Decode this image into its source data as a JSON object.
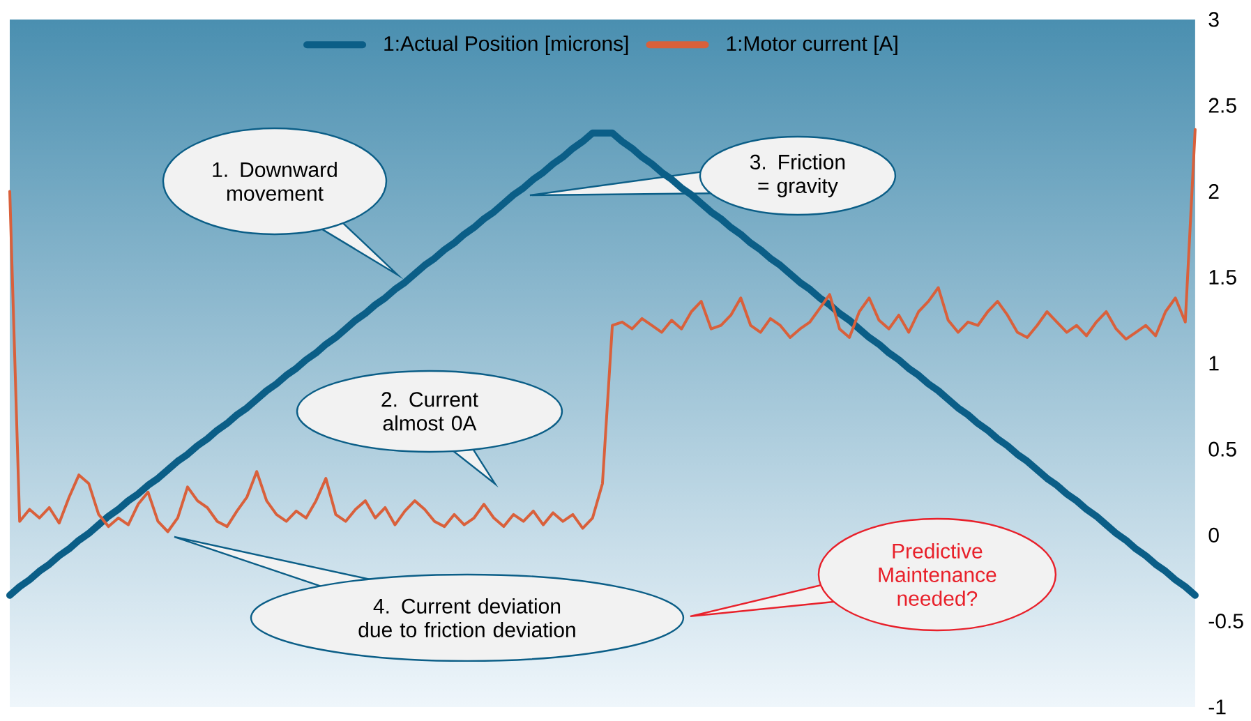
{
  "chart_data": {
    "type": "line",
    "categories": [
      null,
      null,
      null,
      null,
      null,
      null,
      null,
      null,
      null,
      null,
      null,
      null,
      null,
      null,
      null,
      null,
      null,
      null,
      null,
      null,
      null,
      null,
      null,
      null,
      null,
      null,
      null,
      null,
      null,
      null,
      null,
      null,
      null,
      null,
      null,
      null,
      null,
      null,
      null,
      null,
      null,
      null,
      null,
      null,
      null,
      null,
      null,
      null,
      null,
      null,
      null,
      null,
      null,
      null,
      null,
      null,
      null,
      null,
      null,
      null,
      null,
      null,
      null,
      null,
      null,
      null,
      null,
      null,
      null,
      null,
      null,
      null,
      null,
      null,
      null,
      null,
      null,
      null,
      null,
      null,
      null,
      null,
      null,
      null,
      null,
      null,
      null,
      null,
      null,
      null,
      null,
      null,
      null,
      null,
      null,
      null,
      null,
      null,
      null,
      null,
      null,
      null,
      null,
      null,
      null,
      null,
      null,
      null,
      null,
      null,
      null,
      null,
      null,
      null,
      null,
      null,
      null,
      null,
      null,
      null,
      null
    ],
    "series": [
      {
        "name": "1:Actual Position [microns]",
        "color": "#0b5e87",
        "values": [
          -0.35,
          -0.3,
          -0.26,
          -0.21,
          -0.17,
          -0.12,
          -0.08,
          -0.03,
          0.01,
          0.06,
          0.11,
          0.15,
          0.2,
          0.24,
          0.29,
          0.33,
          0.38,
          0.43,
          0.47,
          0.52,
          0.56,
          0.61,
          0.65,
          0.7,
          0.74,
          0.79,
          0.84,
          0.88,
          0.93,
          0.97,
          1.02,
          1.06,
          1.11,
          1.15,
          1.2,
          1.25,
          1.29,
          1.34,
          1.38,
          1.43,
          1.47,
          1.52,
          1.57,
          1.61,
          1.66,
          1.7,
          1.75,
          1.79,
          1.84,
          1.88,
          1.93,
          1.98,
          2.02,
          2.07,
          2.11,
          2.16,
          2.2,
          2.25,
          2.29,
          2.34,
          2.34,
          2.34,
          2.29,
          2.25,
          2.2,
          2.16,
          2.11,
          2.07,
          2.02,
          1.98,
          1.93,
          1.88,
          1.84,
          1.79,
          1.75,
          1.7,
          1.66,
          1.61,
          1.57,
          1.52,
          1.47,
          1.43,
          1.38,
          1.34,
          1.29,
          1.25,
          1.2,
          1.15,
          1.11,
          1.06,
          1.02,
          0.97,
          0.93,
          0.88,
          0.84,
          0.79,
          0.74,
          0.7,
          0.65,
          0.61,
          0.56,
          0.52,
          0.47,
          0.43,
          0.38,
          0.33,
          0.29,
          0.24,
          0.2,
          0.15,
          0.11,
          0.06,
          0.01,
          -0.03,
          -0.08,
          -0.12,
          -0.17,
          -0.21,
          -0.26,
          -0.3,
          -0.35
        ]
      },
      {
        "name": "1:Motor current [A]",
        "color": "#d9603b",
        "values": [
          2.0,
          0.08,
          0.15,
          0.1,
          0.16,
          0.07,
          0.22,
          0.35,
          0.3,
          0.12,
          0.05,
          0.1,
          0.06,
          0.18,
          0.25,
          0.08,
          0.02,
          0.1,
          0.28,
          0.2,
          0.16,
          0.08,
          0.05,
          0.14,
          0.22,
          0.37,
          0.2,
          0.12,
          0.08,
          0.14,
          0.1,
          0.2,
          0.33,
          0.12,
          0.08,
          0.15,
          0.2,
          0.1,
          0.16,
          0.06,
          0.14,
          0.2,
          0.15,
          0.08,
          0.05,
          0.12,
          0.06,
          0.1,
          0.18,
          0.1,
          0.05,
          0.12,
          0.08,
          0.14,
          0.06,
          0.13,
          0.08,
          0.12,
          0.04,
          0.1,
          0.3,
          1.22,
          1.24,
          1.2,
          1.26,
          1.22,
          1.18,
          1.25,
          1.2,
          1.3,
          1.36,
          1.2,
          1.22,
          1.28,
          1.38,
          1.22,
          1.18,
          1.26,
          1.22,
          1.15,
          1.2,
          1.24,
          1.32,
          1.4,
          1.2,
          1.15,
          1.3,
          1.38,
          1.25,
          1.2,
          1.28,
          1.18,
          1.3,
          1.36,
          1.44,
          1.25,
          1.18,
          1.24,
          1.22,
          1.3,
          1.36,
          1.28,
          1.18,
          1.15,
          1.22,
          1.3,
          1.24,
          1.18,
          1.22,
          1.16,
          1.24,
          1.3,
          1.2,
          1.14,
          1.18,
          1.22,
          1.16,
          1.3,
          1.38,
          1.24,
          2.36
        ]
      }
    ],
    "ylim": [
      -1,
      3
    ],
    "yticks": [
      -1,
      -0.5,
      0,
      0.5,
      1,
      1.5,
      2,
      2.5,
      3
    ],
    "legend": "top",
    "annotations": [
      "1. Downward movement",
      "2. Current almost 0A",
      "3. Friction = gravity",
      "4. Current deviation due to friction deviation",
      "Predictive Maintenance needed?"
    ]
  }
}
